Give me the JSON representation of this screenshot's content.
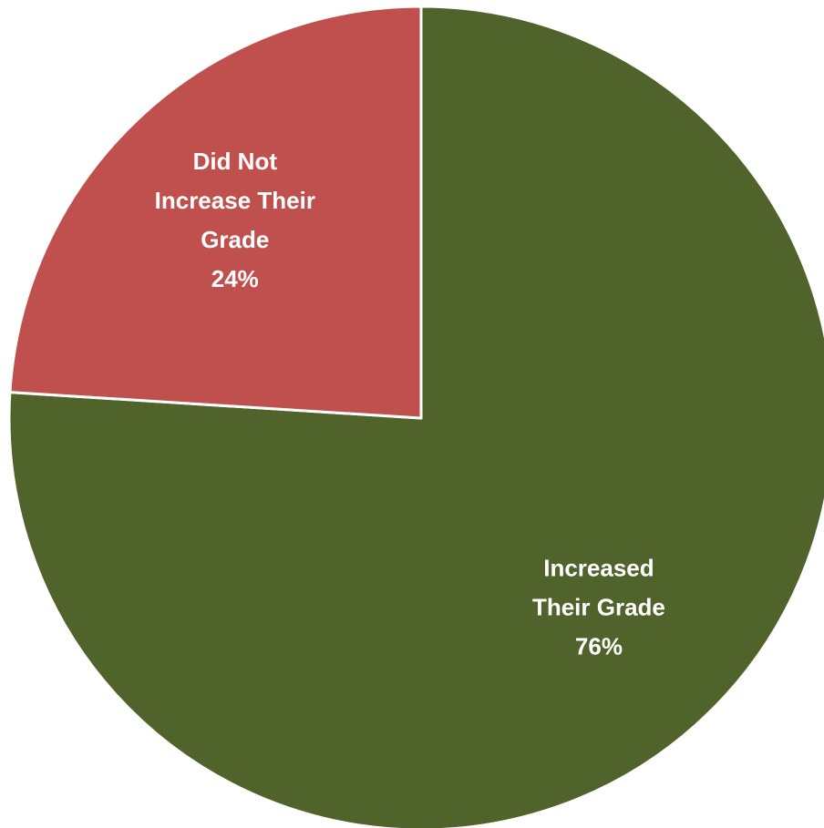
{
  "chart_data": {
    "type": "pie",
    "title": "",
    "slices": [
      {
        "label_lines": [
          "Increased",
          "Their Grade"
        ],
        "value_label": "76%",
        "value": 76,
        "color": "#50632B"
      },
      {
        "label_lines": [
          "Did Not",
          "Increase Their",
          "Grade"
        ],
        "value_label": "24%",
        "value": 24,
        "color": "#C0504D"
      }
    ],
    "start_angle": "12 o'clock",
    "direction": "clockwise",
    "legend": "none",
    "slice_border_color": "#FFFFFF"
  }
}
